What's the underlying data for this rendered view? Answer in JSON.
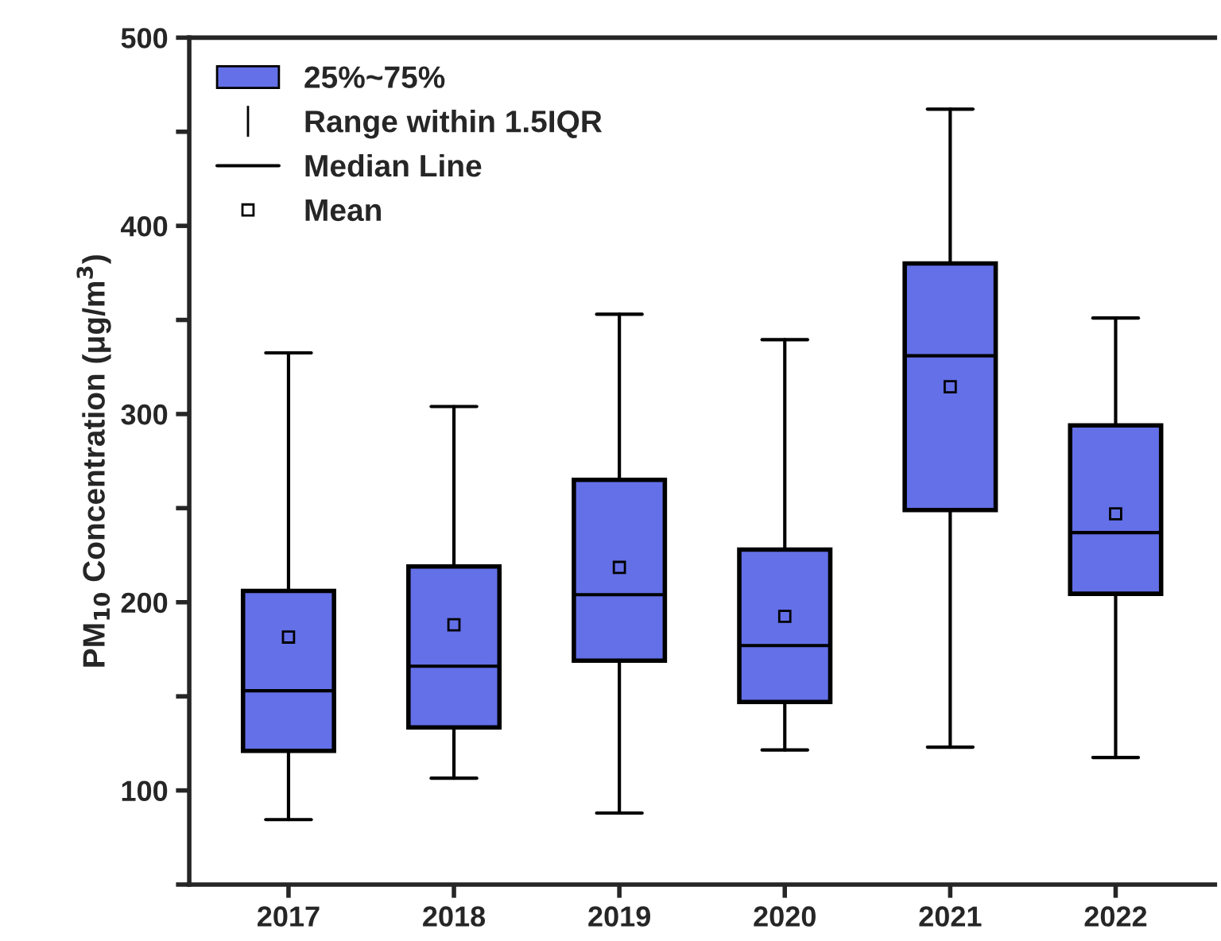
{
  "chart_data": {
    "type": "box",
    "ylabel": "PM$_{10}$ Concentration (μg/m$^{3}$)",
    "categories": [
      "2017",
      "2018",
      "2019",
      "2020",
      "2021",
      "2022"
    ],
    "series": [
      {
        "name": "25%~75%",
        "color": "#6470e8",
        "boxes": [
          {
            "low": 84.5,
            "q1": 121,
            "median": 153,
            "q3": 206,
            "high": 332.5,
            "mean": 181.5
          },
          {
            "low": 106.5,
            "q1": 133.5,
            "median": 166,
            "q3": 219,
            "high": 304,
            "mean": 188
          },
          {
            "low": 88,
            "q1": 169,
            "median": 204,
            "q3": 265,
            "high": 353,
            "mean": 218.5
          },
          {
            "low": 121.5,
            "q1": 147,
            "median": 177,
            "q3": 228,
            "high": 339.5,
            "mean": 192.5
          },
          {
            "low": 123,
            "q1": 249,
            "median": 331,
            "q3": 380,
            "high": 462,
            "mean": 314.5
          },
          {
            "low": 117.5,
            "q1": 204.5,
            "median": 237,
            "q3": 294,
            "high": 351,
            "mean": 247
          }
        ]
      }
    ],
    "annotations": [
      "Range within 1.5IQR",
      "Median Line",
      "Mean"
    ],
    "ylim": [
      50,
      500
    ],
    "yticks": [
      {
        "value": 50,
        "label": null
      },
      100,
      {
        "value": 150,
        "label": null
      },
      200,
      {
        "value": 250,
        "label": null
      },
      300,
      {
        "value": 350,
        "label": null
      },
      400,
      {
        "value": 450,
        "label": null
      },
      500
    ],
    "marker": "square",
    "legend": "top left",
    "grid": false
  }
}
